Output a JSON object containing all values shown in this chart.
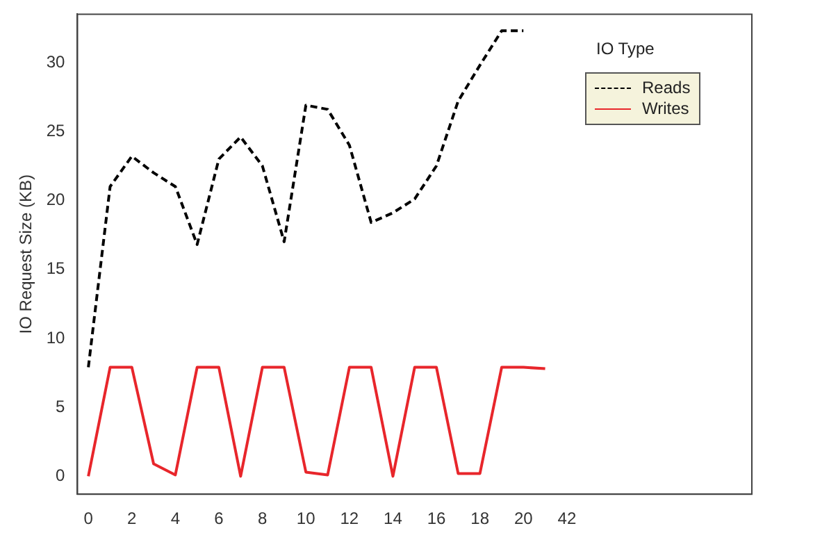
{
  "chart_data": {
    "type": "line",
    "ylabel": "IO Request Size (KB)",
    "legend_title": "IO Type",
    "legend": "top right",
    "grid": false,
    "categories": [
      "0",
      null,
      "2",
      null,
      "4",
      null,
      "6",
      null,
      "8",
      null,
      "10",
      null,
      "12",
      null,
      "14",
      null,
      "16",
      null,
      "18",
      null,
      "20",
      null,
      "42",
      null,
      null,
      null,
      null,
      null,
      null,
      null,
      null
    ],
    "ylim": [
      -1.3,
      33.5
    ],
    "yticks": [
      0,
      5,
      10,
      15,
      20,
      25,
      30
    ],
    "series": [
      {
        "name": "Reads",
        "color": "#000000",
        "line_style": "dashed",
        "values": [
          7.9,
          21.0,
          23.2,
          22.0,
          21.0,
          16.8,
          23.0,
          24.6,
          22.5,
          17.0,
          26.9,
          26.6,
          24.0,
          18.4,
          19.1,
          20.1,
          22.5,
          27.2,
          29.8,
          32.3,
          32.3,
          null,
          null,
          null,
          null,
          null,
          null,
          null,
          null,
          null,
          null
        ]
      },
      {
        "name": "Writes",
        "color": "#e8262b",
        "line_style": "solid",
        "values": [
          0,
          7.9,
          7.9,
          0.9,
          0.1,
          7.9,
          7.9,
          0,
          7.9,
          7.9,
          0.3,
          0.1,
          7.9,
          7.9,
          0,
          7.9,
          7.9,
          0.2,
          0.2,
          7.9,
          7.9,
          7.8,
          null,
          null,
          null,
          null,
          null,
          null,
          null,
          null,
          null
        ]
      }
    ]
  }
}
